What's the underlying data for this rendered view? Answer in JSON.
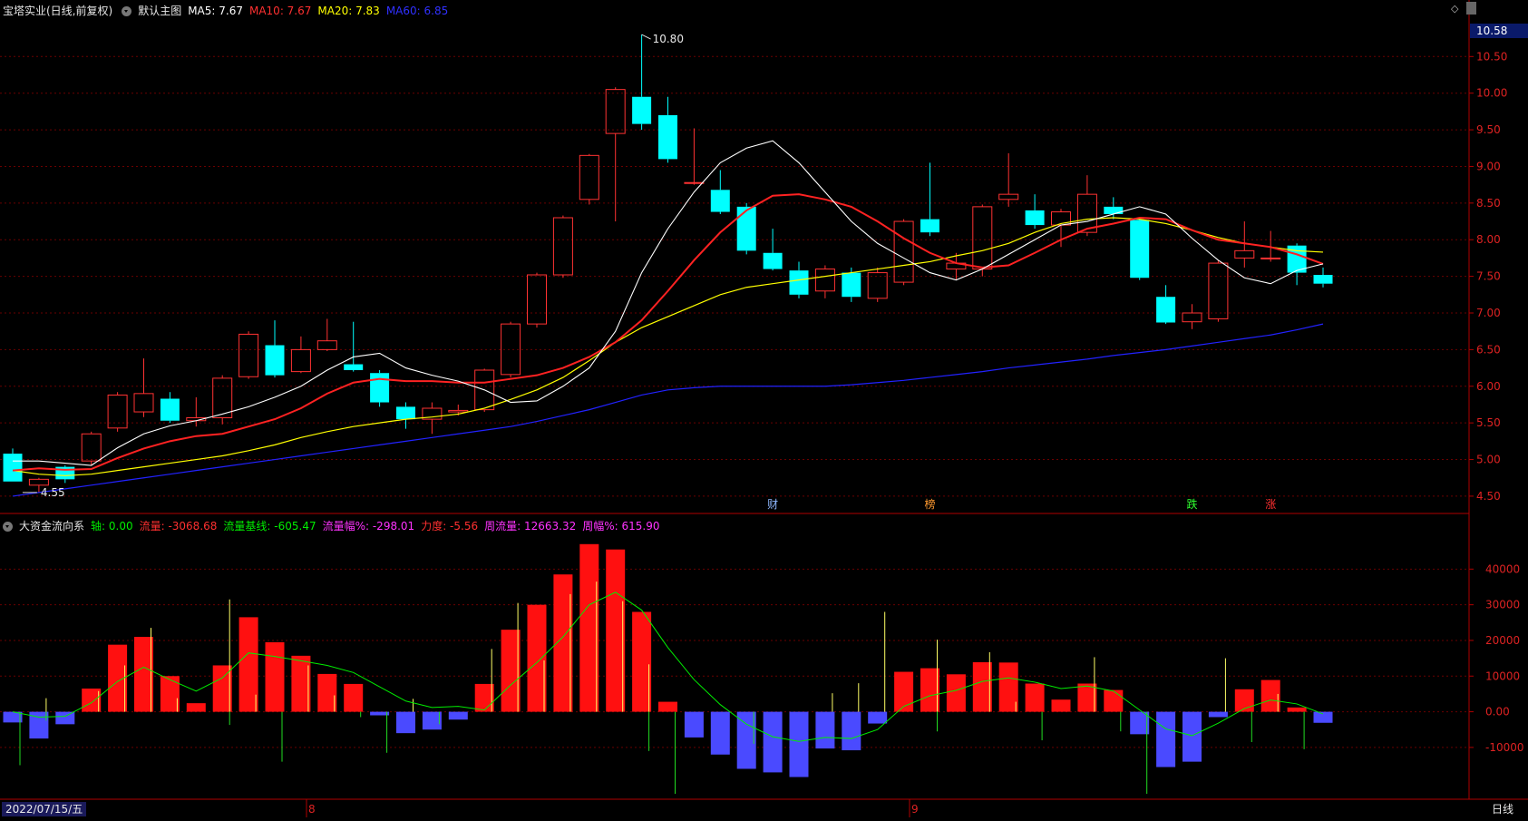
{
  "header": {
    "stock_name": "宝塔实业(日线,前复权)",
    "main_chart_label": "默认主图",
    "ma5": "MA5: 7.67",
    "ma10": "MA10: 7.67",
    "ma20": "MA20: 7.83",
    "ma60": "MA60: 6.85"
  },
  "sub_header": {
    "indicator_name": "大资金流向系",
    "axis": "轴: 0.00",
    "flow": "流量: -3068.68",
    "flow_base": "流量基线: -605.47",
    "flow_amp": "流量幅%: -298.01",
    "strength": "力度: -5.56",
    "week_flow": "周流量: 12663.32",
    "week_amp": "周幅%: 615.90"
  },
  "footer": {
    "date": "2022/07/15/五",
    "month_aug": "8",
    "month_sep": "9",
    "period": "日线"
  },
  "colors": {
    "up": "#ff3232",
    "down": "#00ffff",
    "ma5": "#ffffff",
    "ma10": "#ff2222",
    "ma20": "#ffff00",
    "ma60": "#2222ff",
    "flow_pos": "#ff1010",
    "flow_neg": "#4a4aff",
    "baseline": "#00ee00",
    "axis_text": "#dd2222"
  },
  "chart_data": [
    {
      "type": "candlestick",
      "ylim": [
        4.4,
        10.9
      ],
      "y_ticks": [
        4.5,
        5.0,
        5.5,
        6.0,
        6.5,
        7.0,
        7.5,
        8.0,
        8.5,
        9.0,
        9.5,
        10.0,
        10.5
      ],
      "y_tick_labels": [
        "4.50",
        "5.00",
        "5.50",
        "6.00",
        "6.50",
        "7.00",
        "7.50",
        "8.00",
        "8.50",
        "9.00",
        "9.50",
        "10.00",
        "10.50"
      ],
      "current_price": "10.58",
      "max_label": "10.80",
      "min_label": "4.55",
      "event_markers": [
        {
          "index": 29,
          "text": "财",
          "color": "#8fb8ff"
        },
        {
          "index": 35,
          "text": "榜",
          "color": "#ff9a30"
        },
        {
          "index": 45,
          "text": "跌",
          "color": "#30ff30"
        },
        {
          "index": 48,
          "text": "涨",
          "color": "#ff3030"
        }
      ],
      "candles": [
        [
          5.08,
          4.7,
          5.15,
          4.7
        ],
        [
          4.65,
          4.73,
          4.75,
          4.55
        ],
        [
          4.9,
          4.73,
          4.92,
          4.68
        ],
        [
          4.98,
          5.35,
          5.38,
          4.92
        ],
        [
          5.43,
          5.88,
          5.92,
          5.38
        ],
        [
          5.65,
          5.9,
          6.38,
          5.58
        ],
        [
          5.83,
          5.53,
          5.92,
          5.5
        ],
        [
          5.53,
          5.57,
          5.85,
          5.45
        ],
        [
          5.57,
          6.11,
          6.15,
          5.48
        ],
        [
          6.13,
          6.71,
          6.75,
          6.1
        ],
        [
          6.56,
          6.15,
          6.9,
          6.12
        ],
        [
          6.2,
          6.5,
          6.68,
          6.18
        ],
        [
          6.5,
          6.62,
          6.92,
          6.48
        ],
        [
          6.3,
          6.22,
          6.88,
          6.2
        ],
        [
          6.18,
          5.78,
          6.22,
          5.72
        ],
        [
          5.72,
          5.55,
          5.78,
          5.42
        ],
        [
          5.55,
          5.7,
          5.78,
          5.35
        ],
        [
          5.65,
          5.67,
          5.75,
          5.6
        ],
        [
          5.68,
          6.22,
          6.24,
          5.65
        ],
        [
          6.16,
          6.85,
          6.88,
          6.12
        ],
        [
          6.85,
          7.52,
          7.55,
          6.8
        ],
        [
          7.52,
          8.3,
          8.33,
          7.48
        ],
        [
          8.55,
          9.15,
          9.17,
          8.48
        ],
        [
          9.45,
          10.05,
          10.08,
          8.25
        ],
        [
          9.95,
          9.58,
          10.8,
          9.5
        ],
        [
          9.7,
          9.1,
          9.95,
          9.05
        ],
        [
          8.78,
          8.78,
          9.52,
          8.75
        ],
        [
          8.68,
          8.38,
          8.95,
          8.35
        ],
        [
          8.45,
          7.85,
          8.5,
          7.8
        ],
        [
          7.82,
          7.6,
          8.15,
          7.58
        ],
        [
          7.58,
          7.25,
          7.7,
          7.2
        ],
        [
          7.3,
          7.6,
          7.65,
          7.2
        ],
        [
          7.55,
          7.22,
          7.62,
          7.15
        ],
        [
          7.2,
          7.55,
          7.62,
          7.15
        ],
        [
          7.42,
          8.25,
          8.28,
          7.38
        ],
        [
          8.28,
          8.1,
          9.05,
          8.05
        ],
        [
          7.6,
          7.68,
          7.82,
          7.45
        ],
        [
          7.6,
          8.45,
          8.48,
          7.5
        ],
        [
          8.55,
          8.62,
          9.18,
          8.45
        ],
        [
          8.4,
          8.2,
          8.62,
          8.15
        ],
        [
          8.2,
          8.38,
          8.42,
          7.9
        ],
        [
          8.1,
          8.62,
          8.88,
          8.05
        ],
        [
          8.45,
          8.35,
          8.58,
          8.28
        ],
        [
          8.27,
          7.48,
          8.3,
          7.45
        ],
        [
          7.22,
          6.87,
          7.38,
          6.85
        ],
        [
          6.88,
          7.0,
          7.12,
          6.78
        ],
        [
          6.92,
          7.68,
          7.72,
          6.88
        ],
        [
          7.75,
          7.85,
          8.25,
          7.62
        ],
        [
          7.75,
          7.75,
          8.12,
          7.7
        ],
        [
          7.92,
          7.55,
          7.95,
          7.38
        ],
        [
          7.52,
          7.4,
          7.62,
          7.35
        ]
      ],
      "ma5": [
        4.98,
        4.98,
        4.95,
        4.92,
        5.16,
        5.35,
        5.46,
        5.53,
        5.62,
        5.72,
        5.85,
        6.0,
        6.22,
        6.4,
        6.45,
        6.25,
        6.15,
        6.07,
        5.95,
        5.78,
        5.8,
        6.0,
        6.25,
        6.75,
        7.55,
        8.15,
        8.65,
        9.05,
        9.25,
        9.35,
        9.05,
        8.65,
        8.25,
        7.95,
        7.75,
        7.55,
        7.45,
        7.6,
        7.8,
        8.0,
        8.2,
        8.25,
        8.35,
        8.45,
        8.35,
        8.02,
        7.72,
        7.48,
        7.4,
        7.58,
        7.67
      ],
      "ma10": [
        4.85,
        4.88,
        4.86,
        4.87,
        5.02,
        5.15,
        5.25,
        5.32,
        5.35,
        5.45,
        5.55,
        5.7,
        5.9,
        6.05,
        6.1,
        6.07,
        6.07,
        6.05,
        6.05,
        6.1,
        6.15,
        6.25,
        6.4,
        6.6,
        6.9,
        7.3,
        7.72,
        8.1,
        8.4,
        8.6,
        8.62,
        8.55,
        8.45,
        8.25,
        8.02,
        7.82,
        7.68,
        7.62,
        7.65,
        7.82,
        8.0,
        8.15,
        8.22,
        8.3,
        8.28,
        8.13,
        8.0,
        7.95,
        7.9,
        7.8,
        7.67
      ],
      "ma20": [
        4.85,
        4.8,
        4.78,
        4.8,
        4.85,
        4.9,
        4.95,
        5.0,
        5.05,
        5.12,
        5.2,
        5.3,
        5.38,
        5.45,
        5.5,
        5.55,
        5.58,
        5.62,
        5.7,
        5.82,
        5.95,
        6.12,
        6.35,
        6.6,
        6.8,
        6.95,
        7.1,
        7.25,
        7.35,
        7.4,
        7.45,
        7.5,
        7.55,
        7.6,
        7.65,
        7.7,
        7.78,
        7.85,
        7.95,
        8.1,
        8.22,
        8.28,
        8.3,
        8.28,
        8.22,
        8.13,
        8.03,
        7.95,
        7.9,
        7.85,
        7.83
      ],
      "ma60": [
        4.5,
        4.55,
        4.6,
        4.65,
        4.7,
        4.75,
        4.8,
        4.85,
        4.9,
        4.95,
        5.0,
        5.05,
        5.1,
        5.15,
        5.2,
        5.25,
        5.3,
        5.35,
        5.4,
        5.45,
        5.52,
        5.6,
        5.68,
        5.78,
        5.88,
        5.95,
        5.98,
        6.0,
        6.0,
        6.0,
        6.0,
        6.0,
        6.02,
        6.05,
        6.08,
        6.12,
        6.16,
        6.2,
        6.25,
        6.29,
        6.33,
        6.37,
        6.42,
        6.46,
        6.5,
        6.55,
        6.6,
        6.65,
        6.7,
        6.77,
        6.85
      ]
    },
    {
      "type": "bar",
      "title": "大资金流向系",
      "ylim": [
        -23000,
        50000
      ],
      "y_ticks": [
        -10000,
        0,
        10000,
        20000,
        30000,
        40000
      ],
      "y_tick_labels": [
        "-10000",
        "0.00",
        "10000",
        "20000",
        "30000",
        "40000"
      ],
      "flow": [
        -3000,
        -7500,
        -3500,
        6500,
        18800,
        21000,
        10000,
        2400,
        13000,
        26500,
        19500,
        15700,
        10600,
        7800,
        -1000,
        -6000,
        -5000,
        -2200,
        7800,
        23000,
        30000,
        38500,
        47000,
        45500,
        28000,
        2800,
        -7200,
        -12000,
        -16000,
        -17000,
        -18300,
        -10300,
        -10800,
        -3300,
        11200,
        12200,
        10500,
        13900,
        13800,
        7900,
        3400,
        7900,
        6100,
        -6300,
        -15500,
        -14000,
        -1500,
        6300,
        8900,
        1200,
        -3100
      ],
      "sticks": [
        0,
        3800,
        0,
        5800,
        13000,
        23500,
        3800,
        0,
        31500,
        4800,
        0,
        13000,
        4600,
        0,
        0,
        3600,
        0,
        0,
        17600,
        30500,
        14400,
        33000,
        36500,
        31000,
        13300,
        0,
        0,
        0,
        0,
        0,
        0,
        5200,
        8000,
        28000,
        0,
        20200,
        0,
        16700,
        2800,
        0,
        0,
        15300,
        0,
        0,
        0,
        0,
        15000,
        0,
        5000,
        0,
        0
      ],
      "sticks_neg": [
        -15000,
        -2500,
        0,
        0,
        0,
        0,
        0,
        0,
        -3700,
        0,
        -14000,
        0,
        0,
        -1500,
        -11500,
        0,
        -3500,
        0,
        0,
        0,
        0,
        0,
        0,
        0,
        -11000,
        -23000,
        0,
        0,
        -9000,
        0,
        0,
        0,
        0,
        0,
        0,
        -5500,
        0,
        0,
        0,
        -8000,
        0,
        0,
        -5500,
        -23000,
        0,
        0,
        0,
        -8500,
        0,
        -10500,
        0
      ],
      "baseline": [
        0,
        -1500,
        -1300,
        2500,
        8500,
        12500,
        9000,
        5800,
        9500,
        16500,
        15500,
        14300,
        13000,
        11000,
        7000,
        3000,
        1200,
        1500,
        500,
        7500,
        13800,
        21000,
        30000,
        33500,
        28500,
        18000,
        9000,
        2000,
        -3500,
        -7000,
        -8300,
        -7200,
        -7500,
        -5000,
        1500,
        4500,
        6000,
        8500,
        9500,
        8300,
        6500,
        7200,
        5800,
        500,
        -4800,
        -6700,
        -3200,
        900,
        3300,
        2200,
        -605
      ]
    }
  ]
}
